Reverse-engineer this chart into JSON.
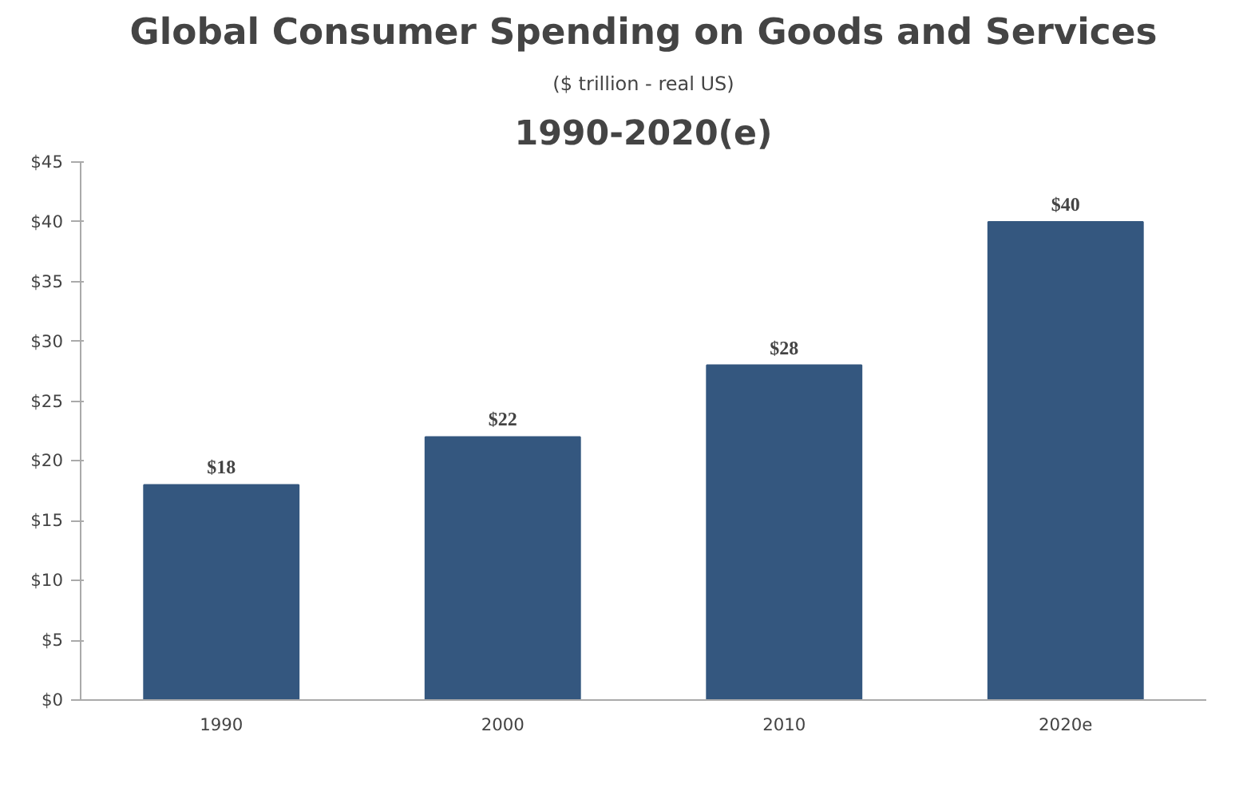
{
  "chart_data": {
    "type": "bar",
    "title": "Global Consumer Spending on Goods and Services",
    "subtitle": "($ trillion - real US)",
    "annotations": [
      "1990-2020(e)"
    ],
    "categories": [
      "1990",
      "2000",
      "2010",
      "2020e"
    ],
    "values": [
      18,
      22,
      28,
      40
    ],
    "color": "#34577f",
    "value_labels": [
      "$18",
      "$22",
      "$28",
      "$40"
    ],
    "ylim": [
      0,
      45
    ],
    "yticks": [
      {
        "value": 0,
        "label": "$0"
      },
      {
        "value": 5,
        "label": "$5"
      },
      {
        "value": 10,
        "label": "$10"
      },
      {
        "value": 15,
        "label": "$15"
      },
      {
        "value": 20,
        "label": "$20"
      },
      {
        "value": 25,
        "label": "$25"
      },
      {
        "value": 30,
        "label": "$30"
      },
      {
        "value": 35,
        "label": "$35"
      },
      {
        "value": 40,
        "label": "$40"
      },
      {
        "value": 45,
        "label": "$45"
      }
    ],
    "grid": false
  }
}
